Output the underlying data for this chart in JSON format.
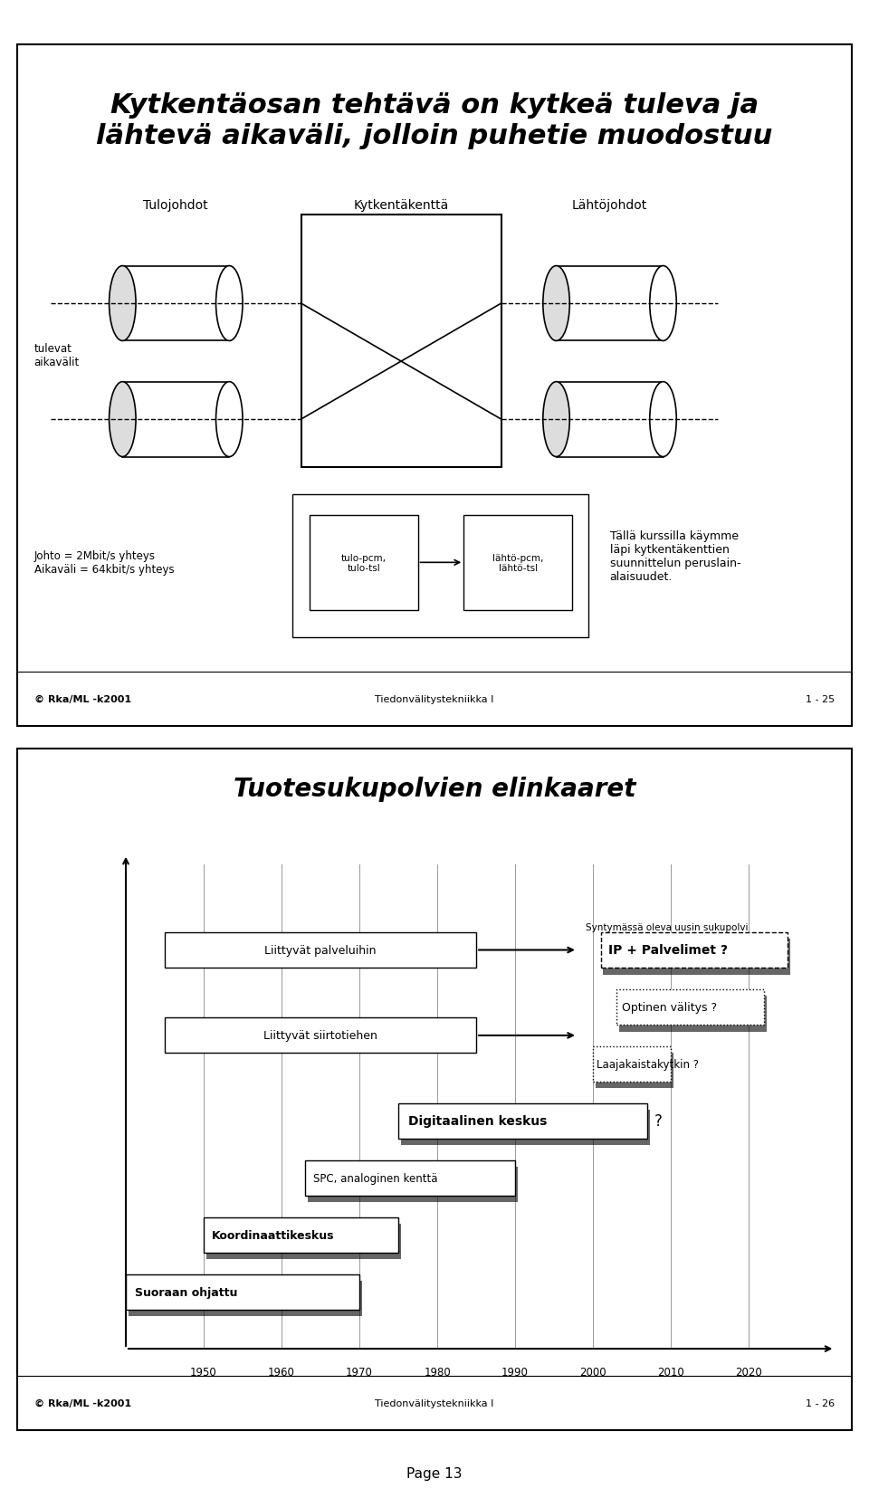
{
  "slide1_title": "Kytkentäosan tehtävä on kytkeä tuleva ja\nlähtevä aikaväli, jolloin puhetie muodostuu",
  "slide1_label_tulojohdot": "Tulojohdot",
  "slide1_label_kytkentakentta": "Kytkentäkenttä",
  "slide1_label_lahtojohdot": "Lähtöjohdot",
  "slide1_label_tulevat": "tulevat\naikavälit",
  "slide1_label_johto": "Johto = 2Mbit/s yhteys\nAikaväli = 64kbit/s yhteys",
  "slide1_label_tulo_pcm": "tulo-pcm,\ntulo-tsl",
  "slide1_label_lahto_pcm": "lähtö-pcm,\nlähtö-tsl",
  "slide1_label_kurssilla": "Tällä kurssilla käymme\nläpi kytkentäkenttien\nsuunnittelun peruslain-\nalaisuudet.",
  "slide1_footer_left": "© Rka/ML -k2001",
  "slide1_footer_center": "Tiedonvälitystekniikka I",
  "slide1_footer_right": "1 - 25",
  "slide2_title": "Tuotesukupolvien elinkaaret",
  "slide2_label_palveluihin": "Liittyvät palveluihin",
  "slide2_label_siirtotiehen": "Liittyvät siirtotiehen",
  "slide2_label_syntymassa": "Syntymässä oleva uusin sukupolvi",
  "slide2_label_ip": "IP + Palvelimet ?",
  "slide2_label_optinen": "Optinen välitys ?",
  "slide2_label_laajakaista": "Laajakaistakytkin ?",
  "slide2_label_digitaalinen": "Digitaalinen keskus",
  "slide2_label_spc": "SPC, analoginen kenttä",
  "slide2_label_koordinaatti": "Koordinaattikeskus",
  "slide2_label_suoraan": "Suoraan ohjattu",
  "slide2_label_question": "?",
  "slide2_footer_left": "© Rka/ML -k2001",
  "slide2_footer_center": "Tiedonvälitystekniikka I",
  "slide2_footer_right": "1 - 26",
  "page_label": "Page 13",
  "bg_color": "#ffffff",
  "bar_color_dark": "#666666",
  "years": [
    1950,
    1960,
    1970,
    1980,
    1990,
    2000,
    2010,
    2020
  ]
}
